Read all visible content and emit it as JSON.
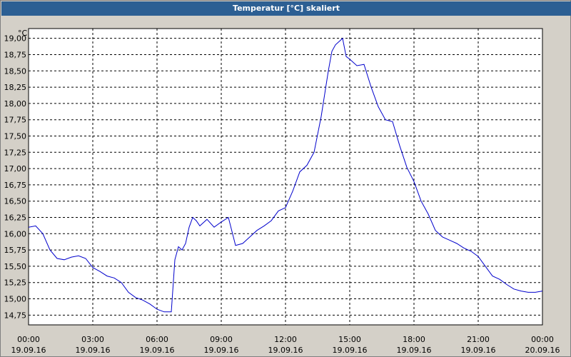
{
  "window": {
    "title": "Temperatur [°C] skaliert"
  },
  "colors": {
    "line": "#0000cc",
    "grid": "#000000",
    "plot_bg": "#ffffff",
    "title_bg": "#2c5f93"
  },
  "chart_data": {
    "type": "line",
    "title": "Temperatur [°C] skaliert",
    "unit": "°C",
    "xlabel": "",
    "ylabel": "",
    "ylim": [
      14.6,
      19.15
    ],
    "xlim": [
      "19.09.16 00:00",
      "20.09.16 00:00"
    ],
    "grid": true,
    "y_ticks": [
      "14,75",
      "15,00",
      "15,25",
      "15,50",
      "15,75",
      "16,00",
      "16,25",
      "16,50",
      "16,75",
      "17,00",
      "17,25",
      "17,50",
      "17,75",
      "18,00",
      "18,25",
      "18,50",
      "18,75",
      "19,00"
    ],
    "x_ticks": [
      {
        "time": "00:00",
        "date": "19.09.16"
      },
      {
        "time": "03:00",
        "date": "19.09.16"
      },
      {
        "time": "06:00",
        "date": "19.09.16"
      },
      {
        "time": "09:00",
        "date": "19.09.16"
      },
      {
        "time": "12:00",
        "date": "19.09.16"
      },
      {
        "time": "15:00",
        "date": "19.09.16"
      },
      {
        "time": "18:00",
        "date": "19.09.16"
      },
      {
        "time": "21:00",
        "date": "19.09.16"
      },
      {
        "time": "00:00",
        "date": "20.09.16"
      }
    ],
    "series": [
      {
        "x": [
          "00:00",
          "00:20",
          "00:40",
          "01:00",
          "01:20",
          "01:40",
          "02:00",
          "02:20",
          "02:40",
          "03:00",
          "03:20",
          "03:40",
          "04:00",
          "04:20",
          "04:40",
          "05:00",
          "05:20",
          "05:40",
          "06:00",
          "06:20",
          "06:40",
          "06:50",
          "07:00",
          "07:10",
          "07:20",
          "07:30",
          "07:40",
          "07:50",
          "08:00",
          "08:20",
          "08:40",
          "09:00",
          "09:20",
          "09:40",
          "10:00",
          "10:20",
          "10:40",
          "11:00",
          "11:20",
          "11:40",
          "12:00",
          "12:20",
          "12:40",
          "13:00",
          "13:20",
          "13:40",
          "14:00",
          "14:10",
          "14:20",
          "14:40",
          "14:50",
          "15:00",
          "15:20",
          "15:40",
          "16:00",
          "16:20",
          "16:40",
          "17:00",
          "17:20",
          "17:40",
          "18:00",
          "18:20",
          "18:40",
          "19:00",
          "19:20",
          "19:40",
          "20:00",
          "20:20",
          "20:40",
          "21:00",
          "21:20",
          "21:40",
          "22:00",
          "22:20",
          "22:40",
          "23:00",
          "23:20",
          "23:40",
          "24:00"
        ],
        "y": [
          16.1,
          16.12,
          16.0,
          15.75,
          15.62,
          15.6,
          15.64,
          15.66,
          15.62,
          15.48,
          15.42,
          15.35,
          15.32,
          15.25,
          15.1,
          15.02,
          14.98,
          14.92,
          14.84,
          14.8,
          14.8,
          15.6,
          15.8,
          15.75,
          15.85,
          16.1,
          16.25,
          16.2,
          16.12,
          16.22,
          16.1,
          16.18,
          16.25,
          15.82,
          15.85,
          15.95,
          16.05,
          16.12,
          16.2,
          16.35,
          16.4,
          16.65,
          16.95,
          17.05,
          17.25,
          17.8,
          18.5,
          18.8,
          18.9,
          19.0,
          18.72,
          18.68,
          18.58,
          18.6,
          18.25,
          17.95,
          17.75,
          17.72,
          17.35,
          17.02,
          16.8,
          16.5,
          16.3,
          16.05,
          15.95,
          15.9,
          15.85,
          15.78,
          15.73,
          15.65,
          15.5,
          15.35,
          15.3,
          15.22,
          15.15,
          15.12,
          15.1,
          15.1,
          15.12
        ],
        "values": [
          16.1,
          16.12,
          16.0,
          15.75,
          15.62,
          15.6,
          15.64,
          15.66,
          15.62,
          15.48,
          15.42,
          15.35,
          15.32,
          15.25,
          15.1,
          15.02,
          14.98,
          14.92,
          14.84,
          14.8,
          14.8,
          15.6,
          15.8,
          15.75,
          15.85,
          16.1,
          16.25,
          16.2,
          16.12,
          16.22,
          16.1,
          16.18,
          16.25,
          15.82,
          15.85,
          15.95,
          16.05,
          16.12,
          16.2,
          16.35,
          16.4,
          16.65,
          16.95,
          17.05,
          17.25,
          17.8,
          18.5,
          18.8,
          18.9,
          19.0,
          18.72,
          18.68,
          18.58,
          18.6,
          18.25,
          17.95,
          17.75,
          17.72,
          17.35,
          17.02,
          16.8,
          16.5,
          16.3,
          16.05,
          15.95,
          15.9,
          15.85,
          15.78,
          15.73,
          15.65,
          15.5,
          15.35,
          15.3,
          15.22,
          15.15,
          15.12,
          15.1,
          15.1,
          15.12
        ]
      }
    ]
  }
}
